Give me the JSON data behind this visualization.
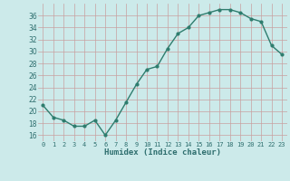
{
  "x": [
    0,
    1,
    2,
    3,
    4,
    5,
    6,
    7,
    8,
    9,
    10,
    11,
    12,
    13,
    14,
    15,
    16,
    17,
    18,
    19,
    20,
    21,
    22,
    23
  ],
  "y": [
    21,
    19,
    18.5,
    17.5,
    17.5,
    18.5,
    16,
    18.5,
    21.5,
    24.5,
    27,
    27.5,
    30.5,
    33,
    34,
    36,
    36.5,
    37,
    37,
    36.5,
    35.5,
    35,
    31,
    29.5
  ],
  "xlabel": "Humidex (Indice chaleur)",
  "ylim": [
    15,
    38
  ],
  "xlim": [
    -0.5,
    23.5
  ],
  "yticks": [
    16,
    18,
    20,
    22,
    24,
    26,
    28,
    30,
    32,
    34,
    36
  ],
  "xtick_labels": [
    "0",
    "1",
    "2",
    "3",
    "4",
    "5",
    "6",
    "7",
    "8",
    "9",
    "10",
    "11",
    "12",
    "13",
    "14",
    "15",
    "16",
    "17",
    "18",
    "19",
    "20",
    "21",
    "22",
    "23"
  ],
  "line_color": "#2e7d6e",
  "bg_color": "#cceaea",
  "grid_color": "#c8a0a0",
  "fig_bg": "#cceaea"
}
